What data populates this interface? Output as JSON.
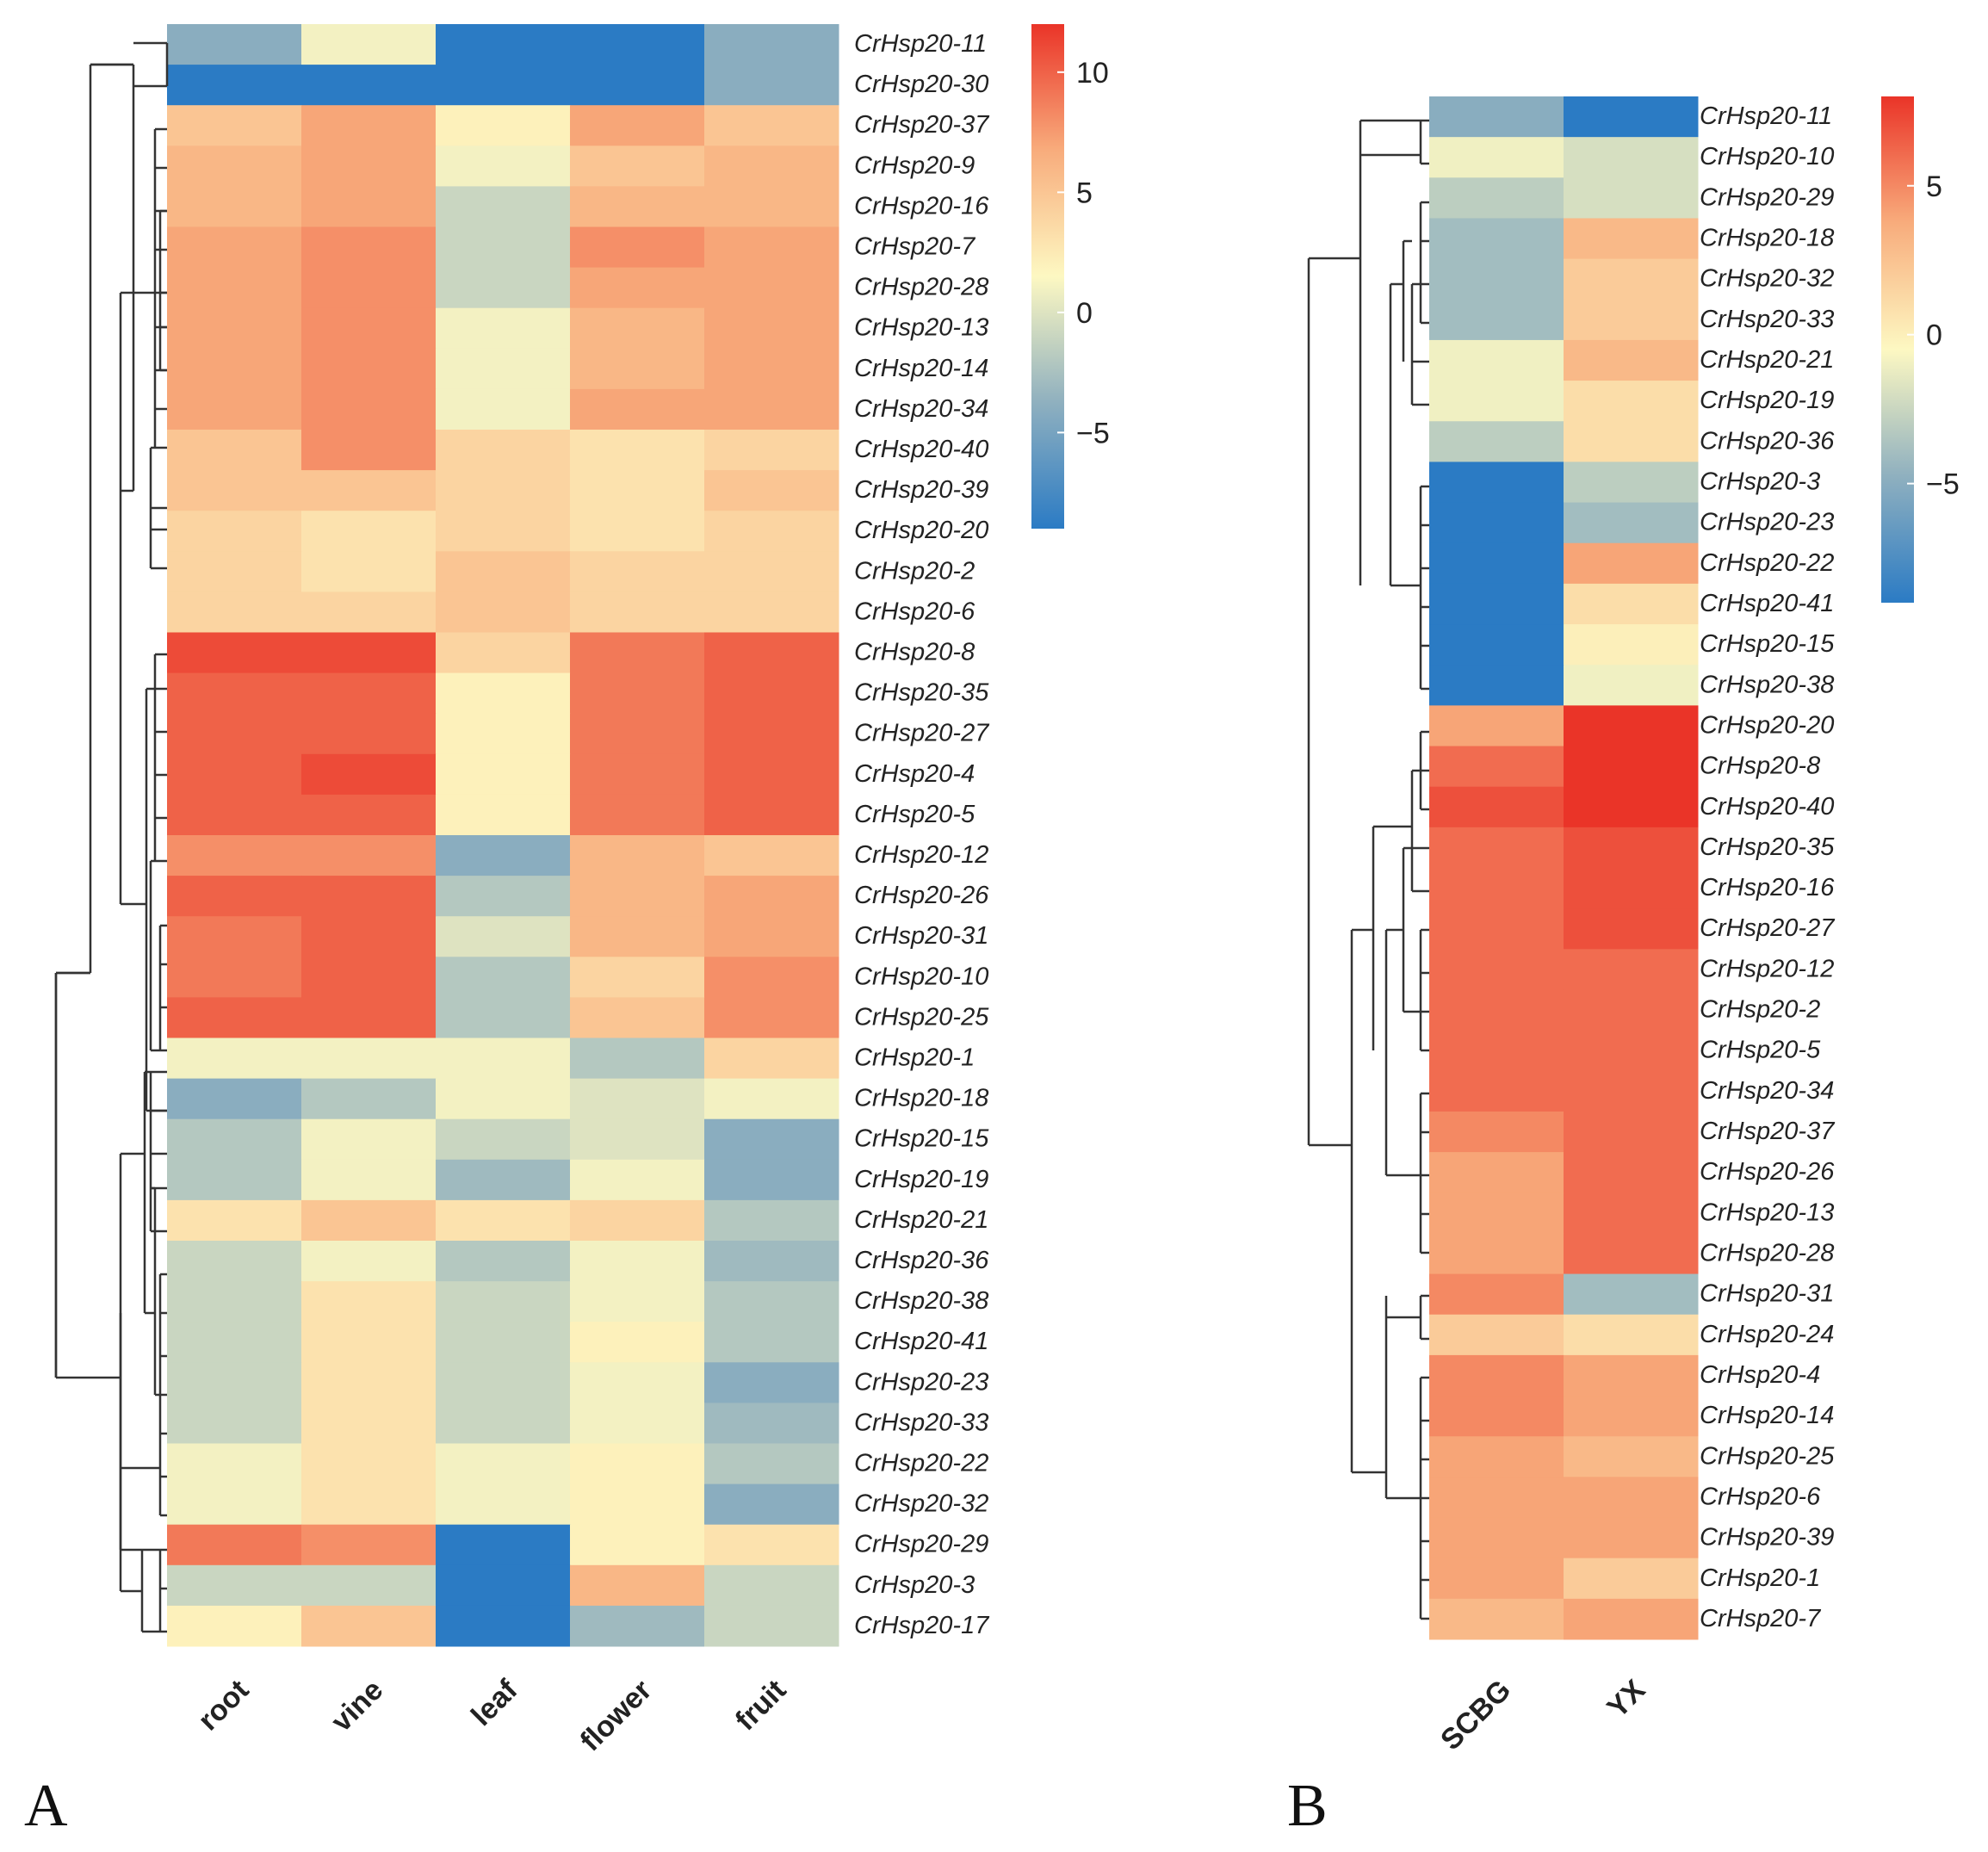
{
  "chart_data": [
    {
      "type": "heatmap",
      "panel_label": "A",
      "columns": [
        "root",
        "vine",
        "leaf",
        "flower",
        "fruit"
      ],
      "rows": [
        "CrHsp20-11",
        "CrHsp20-30",
        "CrHsp20-37",
        "CrHsp20-9",
        "CrHsp20-16",
        "CrHsp20-7",
        "CrHsp20-28",
        "CrHsp20-13",
        "CrHsp20-14",
        "CrHsp20-34",
        "CrHsp20-40",
        "CrHsp20-39",
        "CrHsp20-20",
        "CrHsp20-2",
        "CrHsp20-6",
        "CrHsp20-8",
        "CrHsp20-35",
        "CrHsp20-27",
        "CrHsp20-4",
        "CrHsp20-5",
        "CrHsp20-12",
        "CrHsp20-26",
        "CrHsp20-31",
        "CrHsp20-10",
        "CrHsp20-25",
        "CrHsp20-1",
        "CrHsp20-18",
        "CrHsp20-15",
        "CrHsp20-19",
        "CrHsp20-21",
        "CrHsp20-36",
        "CrHsp20-38",
        "CrHsp20-41",
        "CrHsp20-23",
        "CrHsp20-33",
        "CrHsp20-22",
        "CrHsp20-32",
        "CrHsp20-29",
        "CrHsp20-3",
        "CrHsp20-17"
      ],
      "values": [
        [
          -4,
          1,
          -9,
          -9,
          -4
        ],
        [
          -9,
          -9,
          -9,
          -9,
          -4
        ],
        [
          5,
          7,
          2,
          7,
          5
        ],
        [
          6,
          7,
          1,
          5,
          6
        ],
        [
          6,
          7,
          -1,
          6,
          6
        ],
        [
          7,
          8,
          -1,
          8,
          7
        ],
        [
          7,
          8,
          -1,
          7,
          7
        ],
        [
          7,
          8,
          1,
          6,
          7
        ],
        [
          7,
          8,
          1,
          6,
          7
        ],
        [
          7,
          8,
          1,
          7,
          7
        ],
        [
          5,
          8,
          4,
          3,
          4
        ],
        [
          5,
          5,
          4,
          3,
          5
        ],
        [
          4,
          3,
          4,
          3,
          4
        ],
        [
          4,
          3,
          5,
          4,
          4
        ],
        [
          4,
          4,
          5,
          4,
          4
        ],
        [
          11,
          11,
          4,
          9,
          10
        ],
        [
          10,
          10,
          2,
          9,
          10
        ],
        [
          10,
          10,
          2,
          9,
          10
        ],
        [
          10,
          11,
          2,
          9,
          10
        ],
        [
          10,
          10,
          2,
          9,
          10
        ],
        [
          8,
          8,
          -4,
          6,
          5
        ],
        [
          10,
          10,
          -2,
          6,
          7
        ],
        [
          9,
          10,
          0,
          6,
          7
        ],
        [
          9,
          10,
          -2,
          4,
          8
        ],
        [
          10,
          10,
          -2,
          5,
          8
        ],
        [
          1,
          1,
          1,
          -2,
          4
        ],
        [
          -4,
          -2,
          1,
          0,
          1
        ],
        [
          -2,
          1,
          -1,
          0,
          -4
        ],
        [
          -2,
          1,
          -3,
          1,
          -4
        ],
        [
          3,
          5,
          3,
          4,
          -2
        ],
        [
          -1,
          1,
          -2,
          1,
          -3
        ],
        [
          -1,
          3,
          -1,
          1,
          -2
        ],
        [
          -1,
          3,
          -1,
          2,
          -2
        ],
        [
          -1,
          3,
          -1,
          1,
          -4
        ],
        [
          -1,
          3,
          -1,
          1,
          -3
        ],
        [
          1,
          3,
          1,
          2,
          -2
        ],
        [
          1,
          3,
          1,
          2,
          -4
        ],
        [
          9,
          8,
          -9,
          2,
          3
        ],
        [
          -1,
          -1,
          -9,
          6,
          -1
        ],
        [
          2,
          5,
          -9,
          -3,
          -1
        ]
      ],
      "colorbar": {
        "ticks": [
          10,
          5,
          0,
          -5
        ],
        "tick_labels": [
          "10",
          "5",
          "0",
          "−5"
        ],
        "range": [
          -9,
          12
        ]
      }
    },
    {
      "type": "heatmap",
      "panel_label": "B",
      "columns": [
        "SCBG",
        "YX"
      ],
      "rows": [
        "CrHsp20-11",
        "CrHsp20-10",
        "CrHsp20-29",
        "CrHsp20-18",
        "CrHsp20-32",
        "CrHsp20-33",
        "CrHsp20-21",
        "CrHsp20-19",
        "CrHsp20-36",
        "CrHsp20-3",
        "CrHsp20-23",
        "CrHsp20-22",
        "CrHsp20-41",
        "CrHsp20-15",
        "CrHsp20-38",
        "CrHsp20-20",
        "CrHsp20-8",
        "CrHsp20-40",
        "CrHsp20-35",
        "CrHsp20-16",
        "CrHsp20-27",
        "CrHsp20-12",
        "CrHsp20-2",
        "CrHsp20-5",
        "CrHsp20-34",
        "CrHsp20-37",
        "CrHsp20-26",
        "CrHsp20-13",
        "CrHsp20-28",
        "CrHsp20-31",
        "CrHsp20-24",
        "CrHsp20-4",
        "CrHsp20-14",
        "CrHsp20-25",
        "CrHsp20-6",
        "CrHsp20-39",
        "CrHsp20-1",
        "CrHsp20-7"
      ],
      "values": [
        [
          -5,
          -9
        ],
        [
          -1,
          -2
        ],
        [
          -3,
          -2
        ],
        [
          -4,
          3
        ],
        [
          -4,
          2
        ],
        [
          -4,
          2
        ],
        [
          -1,
          3
        ],
        [
          -1,
          1
        ],
        [
          -3,
          1
        ],
        [
          -9,
          -3
        ],
        [
          -9,
          -4
        ],
        [
          -9,
          4
        ],
        [
          -9,
          1
        ],
        [
          -9,
          0
        ],
        [
          -9,
          -1
        ],
        [
          4,
          8
        ],
        [
          6,
          8
        ],
        [
          7,
          8
        ],
        [
          6,
          7
        ],
        [
          6,
          7
        ],
        [
          6,
          7
        ],
        [
          6,
          6
        ],
        [
          6,
          6
        ],
        [
          6,
          6
        ],
        [
          6,
          6
        ],
        [
          5,
          6
        ],
        [
          4,
          6
        ],
        [
          4,
          6
        ],
        [
          4,
          6
        ],
        [
          5,
          -4
        ],
        [
          2,
          1
        ],
        [
          5,
          4
        ],
        [
          5,
          4
        ],
        [
          4,
          3
        ],
        [
          4,
          4
        ],
        [
          4,
          4
        ],
        [
          4,
          2
        ],
        [
          3,
          4
        ]
      ],
      "colorbar": {
        "ticks": [
          5,
          0,
          -5
        ],
        "tick_labels": [
          "5",
          "0",
          "−5"
        ],
        "range": [
          -9,
          8
        ]
      }
    }
  ]
}
